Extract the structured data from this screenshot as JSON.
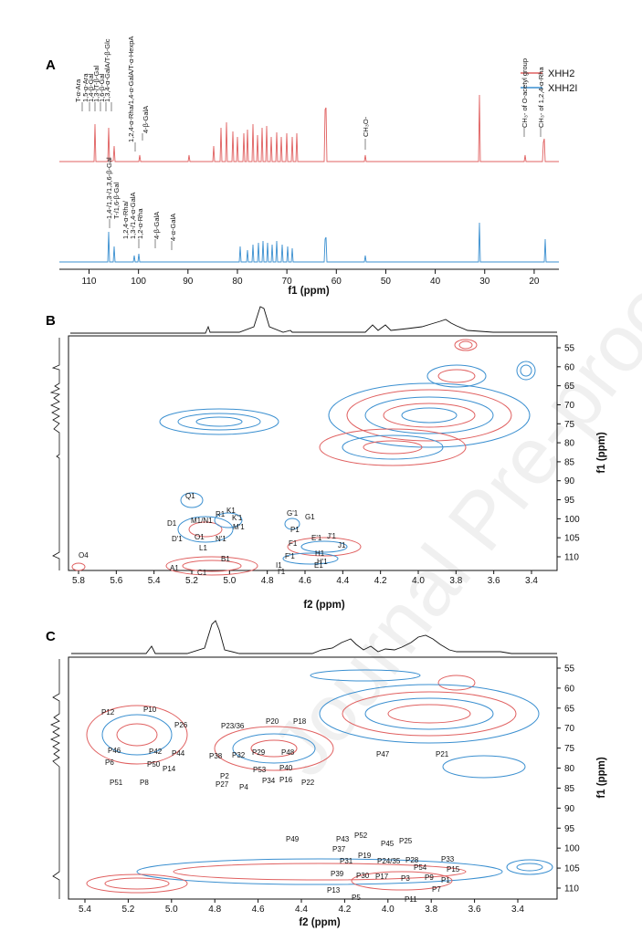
{
  "panels": {
    "A": "A",
    "B": "B",
    "C": "C"
  },
  "legend": [
    {
      "label": "XHH2",
      "color": "#e06060"
    },
    {
      "label": "XHH2I",
      "color": "#3a8fd0"
    }
  ],
  "colors": {
    "red": "#e06060",
    "blue": "#3a8fd0",
    "axis": "#111111"
  },
  "watermark": "Journal Pre-proof",
  "panel_a": {
    "xlabel": "f1 (ppm)",
    "xticks": [
      110,
      100,
      90,
      80,
      70,
      60,
      50,
      40,
      30,
      20
    ],
    "annotations_top": [
      "T-α-Ara",
      "1,5-α-Ara",
      "1,4-β-Gal",
      "1,3-/T-β-Gal",
      "1,6-β-Gal",
      "1,3,4-α-GalA/T-β-Glc",
      "1,2,4-α-Rha/1,4-α-GalA/T-α-HexpA",
      "4-β-GalA",
      "CH₃O-",
      "CH₃- of O-acetyl group",
      "CH₃- of 1,2,4-α-Rha"
    ],
    "annotations_bottom": [
      "1,4-/1,3-/1,3,6-β-Gal",
      "T-/1,6-β-Gal",
      "1,2,4-α-Rha/",
      "1,3-/1,4-α-GalA",
      "1,2-α-Rha",
      "4-β-GalA",
      "4-α-GalA"
    ]
  },
  "panel_b": {
    "xlabel": "f2 (ppm)",
    "ylabel": "f1 (ppm)",
    "xticks": [
      "5.8",
      "5.6",
      "5.4",
      "5.2",
      "5.0",
      "4.8",
      "4.6",
      "4.4",
      "4.2",
      "4.0",
      "3.8",
      "3.6",
      "3.4"
    ],
    "yticks": [
      "55",
      "60",
      "65",
      "70",
      "75",
      "80",
      "85",
      "90",
      "95",
      "100",
      "105",
      "110"
    ],
    "peaks": [
      "Q1",
      "K1",
      "D1",
      "M1/N1",
      "R1",
      "K'1",
      "M'1",
      "D'1",
      "O1",
      "N'1",
      "L1",
      "B1",
      "A1",
      "C1",
      "O4",
      "G'1",
      "G1",
      "P1",
      "E'1",
      "J'1",
      "F1",
      "J1",
      "F'1",
      "H1",
      "H'1",
      "I1",
      "E1",
      "I'1"
    ]
  },
  "panel_c": {
    "xlabel": "f2 (ppm)",
    "ylabel": "f1 (ppm)",
    "xticks": [
      "5.4",
      "5.2",
      "5.0",
      "4.8",
      "4.6",
      "4.4",
      "4.2",
      "4.0",
      "3.8",
      "3.6",
      "3.4"
    ],
    "yticks": [
      "55",
      "60",
      "65",
      "70",
      "75",
      "80",
      "85",
      "90",
      "95",
      "100",
      "105",
      "110"
    ],
    "peaks": [
      "P12",
      "P10",
      "P26",
      "P23/36",
      "P20",
      "P18",
      "P46",
      "P42",
      "P44",
      "P6",
      "P50",
      "P14",
      "P51",
      "P8",
      "P38",
      "P32",
      "P29",
      "P48",
      "P47",
      "P21",
      "P2",
      "P53",
      "P40",
      "P27",
      "P4",
      "P34",
      "P16",
      "P22",
      "P49",
      "P43",
      "P52",
      "P45",
      "P25",
      "P37",
      "P19",
      "P24/35",
      "P28",
      "P31",
      "P54",
      "P33",
      "P15",
      "P39",
      "P30",
      "P17",
      "P3",
      "P9",
      "P1",
      "P13",
      "P7",
      "P5",
      "P11"
    ]
  }
}
